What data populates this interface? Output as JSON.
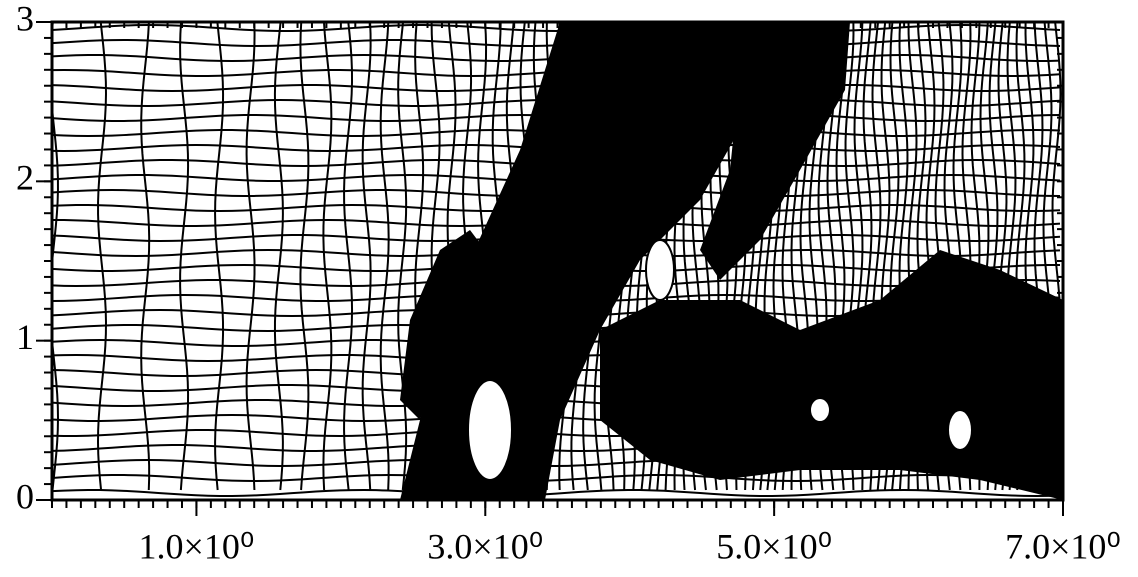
{
  "chart_data": {
    "type": "mesh",
    "xlim": [
      0,
      7
    ],
    "ylim": [
      0,
      3
    ],
    "xticks": [
      {
        "value": 1,
        "label": "1.0×10⁰"
      },
      {
        "value": 3,
        "label": "3.0×10⁰"
      },
      {
        "value": 5,
        "label": "5.0×10⁰"
      },
      {
        "value": 7,
        "label": "7.0×10⁰"
      }
    ],
    "yticks": [
      0,
      1,
      2,
      3
    ]
  }
}
